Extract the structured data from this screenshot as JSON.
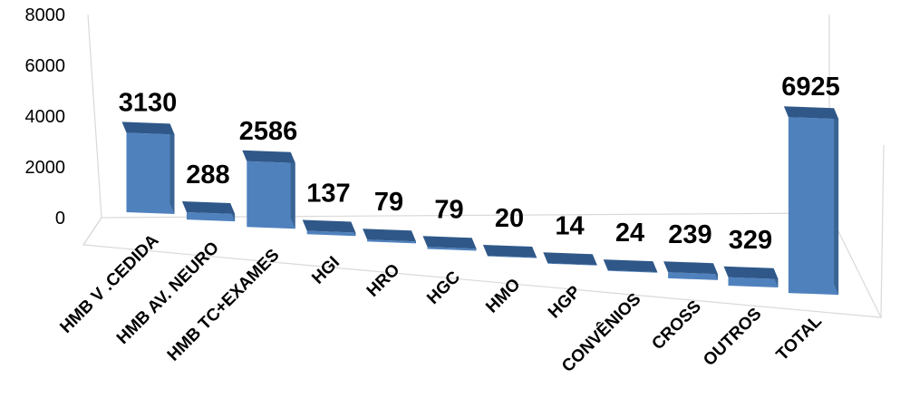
{
  "chart_data": {
    "type": "bar",
    "style": "3d-perspective",
    "categories": [
      "HMB V .CEDIDA",
      "HMB AV. NEURO",
      "HMB TC+EXAMES",
      "HGI",
      "HRO",
      "HGC",
      "HMO",
      "HGP",
      "CONVÊNIOS",
      "CROSS",
      "OUTROS",
      "TOTAL"
    ],
    "values": [
      3130,
      288,
      2586,
      137,
      79,
      79,
      20,
      14,
      24,
      239,
      329,
      6925
    ],
    "data_labels": [
      "3130",
      "288",
      "2586",
      "137",
      "79",
      "79",
      "20",
      "14",
      "24",
      "239",
      "329",
      "6925"
    ],
    "y_ticks": [
      "0",
      "2000",
      "4000",
      "6000",
      "8000"
    ],
    "ylim": [
      0,
      8000
    ],
    "grid": false,
    "legend": "none",
    "colors": {
      "bar_front": "#4f81bd",
      "bar_side": "#3a6493",
      "bar_top": "#2f5889",
      "axis": "#d9d9d9"
    }
  }
}
